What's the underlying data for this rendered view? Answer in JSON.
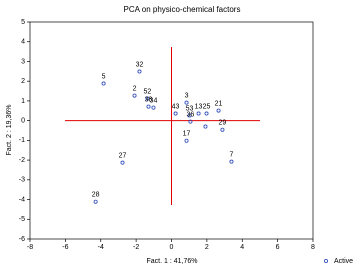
{
  "chart_data": {
    "type": "scatter",
    "title": "PCA on physico-chemical factors",
    "x_label": "Fact. 1 : 41,76%",
    "y_label": "Fact. 2 : 19,36%",
    "xlim": [
      -8,
      8
    ],
    "xticks": [
      -8,
      -6,
      -4,
      -2,
      0,
      2,
      4,
      6,
      8
    ],
    "ylim": [
      -6,
      5
    ],
    "yticks": [
      -6,
      -5,
      -4,
      -3,
      -2,
      -1,
      0,
      1,
      2,
      3,
      4,
      5
    ],
    "x": [
      -3.84,
      -1.81,
      -2.09,
      -1.36,
      -1.3,
      -1.02,
      0.85,
      0.23,
      1.02,
      1.07,
      1.53,
      1.98,
      2.66,
      1.92,
      2.88,
      0.85,
      3.39,
      -2.77,
      -4.29
    ],
    "series": [
      {
        "name": "Active",
        "color": "#2a48b8",
        "values": [
          1.88,
          2.49,
          1.27,
          1.12,
          0.71,
          0.66,
          0.91,
          0.36,
          0.26,
          -0.05,
          0.36,
          0.36,
          0.51,
          -0.3,
          -0.46,
          -1.02,
          -2.08,
          -2.13,
          -4.11
        ],
        "point_labels": [
          "5",
          "32",
          "2",
          "52",
          "38",
          "34",
          "3",
          "43",
          "53",
          "36",
          "13",
          "25",
          "21",
          null,
          "29",
          "17",
          "7",
          "27",
          "28"
        ]
      }
    ],
    "legend": "bottom-right"
  }
}
